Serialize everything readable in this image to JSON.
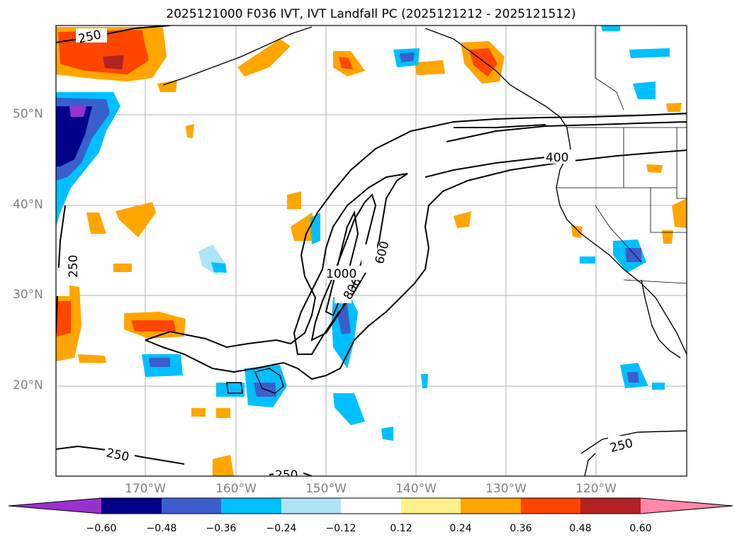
{
  "title": "2025121000 F036 IVT, IVT Landfall PC (2025121212 - 2025121512)",
  "lat_labels": [
    "50°N",
    "40°N",
    "30°N",
    "20°N"
  ],
  "lon_labels": [
    "170°W",
    "160°W",
    "150°W",
    "140°W",
    "130°W",
    "120°W"
  ],
  "contour_labels": [
    "250",
    "250",
    "250",
    "250",
    "250",
    "400",
    "600",
    "800",
    "1000"
  ],
  "colorbar": {
    "ticks": [
      "−0.60",
      "−0.48",
      "−0.36",
      "−0.24",
      "−0.12",
      "0.12",
      "0.24",
      "0.36",
      "0.48",
      "0.60"
    ],
    "colors": [
      "#9932cc",
      "#00008b",
      "#3a5fcd",
      "#00bfff",
      "#aee4f7",
      "#ffffff",
      "#fff08c",
      "#ffa500",
      "#ff4500",
      "#b22222",
      "#ff88aa"
    ]
  },
  "colors": {
    "gridline": "#b0b0b0",
    "tick_label": "#808080"
  }
}
